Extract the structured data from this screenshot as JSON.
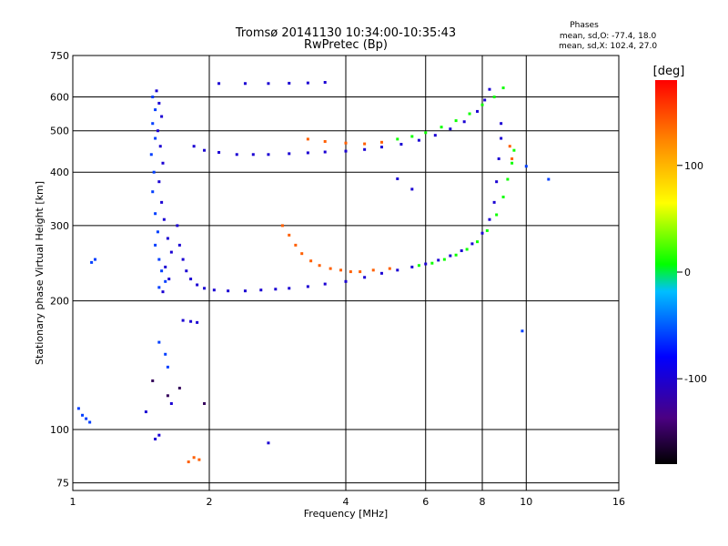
{
  "chart_data": {
    "type": "scatter",
    "title": "Tromsø 20141130 10:34:00-10:35:43",
    "subtitle": "RwPretec (Bp)",
    "xlabel": "Frequency [MHz]",
    "ylabel": "Stationary phase Virtual Height [km]",
    "x_scale": "log",
    "y_scale": "log",
    "xlim": [
      1,
      16
    ],
    "ylim": [
      72,
      750
    ],
    "x_ticks": [
      1,
      2,
      4,
      6,
      8,
      10,
      16
    ],
    "x_tick_labels": [
      "1",
      "2",
      "4",
      "6",
      "8",
      "10",
      "16"
    ],
    "y_ticks": [
      75,
      100,
      200,
      300,
      400,
      500,
      600,
      750
    ],
    "y_tick_labels": [
      "75",
      "100",
      "200",
      "300",
      "400",
      "500",
      "600",
      "750"
    ],
    "grid": true,
    "phase_info": {
      "heading": "Phases",
      "line_o": "mean, sd,O: -77.4, 18.0",
      "line_x": "mean, sd,X: 102.4, 27.0"
    },
    "colorbar": {
      "label": "[deg]",
      "range": [
        -180,
        180
      ],
      "ticks": [
        100,
        0,
        -100
      ],
      "tick_labels": [
        "100",
        "0",
        "-100"
      ]
    },
    "series": [
      {
        "color_deg": -100,
        "points": [
          [
            1.53,
            620
          ],
          [
            1.55,
            580
          ],
          [
            1.57,
            540
          ],
          [
            1.54,
            500
          ],
          [
            1.56,
            460
          ],
          [
            1.58,
            420
          ],
          [
            1.55,
            380
          ],
          [
            1.57,
            340
          ],
          [
            1.59,
            310
          ],
          [
            1.62,
            280
          ],
          [
            1.65,
            260
          ],
          [
            1.6,
            240
          ],
          [
            1.63,
            225
          ],
          [
            1.58,
            210
          ],
          [
            1.7,
            300
          ],
          [
            1.72,
            270
          ],
          [
            1.75,
            250
          ],
          [
            1.78,
            235
          ],
          [
            1.82,
            225
          ],
          [
            1.88,
            218
          ],
          [
            1.95,
            214
          ],
          [
            2.05,
            212
          ],
          [
            2.2,
            211
          ],
          [
            2.4,
            211
          ],
          [
            2.6,
            212
          ],
          [
            2.8,
            213
          ],
          [
            3.0,
            214
          ],
          [
            3.3,
            216
          ],
          [
            3.6,
            219
          ],
          [
            4.0,
            222
          ],
          [
            4.4,
            227
          ],
          [
            4.8,
            232
          ],
          [
            5.2,
            236
          ],
          [
            5.6,
            240
          ],
          [
            6.0,
            244
          ],
          [
            6.4,
            249
          ],
          [
            6.8,
            255
          ],
          [
            7.2,
            262
          ],
          [
            7.6,
            272
          ],
          [
            8.0,
            288
          ],
          [
            8.3,
            310
          ],
          [
            8.5,
            340
          ],
          [
            8.6,
            380
          ],
          [
            8.7,
            430
          ],
          [
            8.8,
            480
          ],
          [
            8.8,
            520
          ],
          [
            1.85,
            460
          ],
          [
            1.95,
            450
          ],
          [
            2.1,
            445
          ],
          [
            2.3,
            440
          ],
          [
            2.5,
            440
          ],
          [
            2.7,
            440
          ],
          [
            3.0,
            442
          ],
          [
            3.3,
            444
          ],
          [
            3.6,
            446
          ],
          [
            4.0,
            448
          ],
          [
            4.4,
            452
          ],
          [
            4.8,
            458
          ],
          [
            5.3,
            465
          ],
          [
            5.8,
            475
          ],
          [
            6.3,
            488
          ],
          [
            6.8,
            505
          ],
          [
            7.3,
            525
          ],
          [
            7.8,
            555
          ],
          [
            8.1,
            590
          ],
          [
            8.3,
            625
          ],
          [
            2.1,
            645
          ],
          [
            2.4,
            645
          ],
          [
            2.7,
            645
          ],
          [
            3.0,
            646
          ],
          [
            3.3,
            647
          ],
          [
            3.6,
            649
          ],
          [
            1.75,
            180
          ],
          [
            1.82,
            179
          ],
          [
            1.88,
            178
          ],
          [
            1.52,
            95
          ],
          [
            1.55,
            97
          ],
          [
            1.45,
            110
          ],
          [
            1.65,
            115
          ],
          [
            5.2,
            386
          ],
          [
            5.6,
            365
          ],
          [
            2.7,
            93
          ]
        ]
      },
      {
        "color_deg": -60,
        "points": [
          [
            1.5,
            600
          ],
          [
            1.52,
            560
          ],
          [
            1.5,
            520
          ],
          [
            1.52,
            480
          ],
          [
            1.49,
            440
          ],
          [
            1.51,
            400
          ],
          [
            1.5,
            360
          ],
          [
            1.52,
            320
          ],
          [
            1.54,
            290
          ],
          [
            1.52,
            270
          ],
          [
            1.55,
            250
          ],
          [
            1.57,
            235
          ],
          [
            1.6,
            222
          ],
          [
            1.55,
            215
          ],
          [
            1.03,
            112
          ],
          [
            1.05,
            108
          ],
          [
            1.07,
            106
          ],
          [
            1.09,
            104
          ],
          [
            1.1,
            246
          ],
          [
            1.12,
            250
          ],
          [
            1.6,
            150
          ],
          [
            1.62,
            140
          ],
          [
            1.55,
            160
          ],
          [
            10.0,
            413
          ],
          [
            9.8,
            170
          ],
          [
            11.2,
            385
          ]
        ]
      },
      {
        "color_deg": 10,
        "points": [
          [
            5.8,
            242
          ],
          [
            6.2,
            245
          ],
          [
            6.6,
            250
          ],
          [
            7.0,
            256
          ],
          [
            7.4,
            264
          ],
          [
            7.8,
            275
          ],
          [
            8.2,
            292
          ],
          [
            8.6,
            318
          ],
          [
            8.9,
            350
          ],
          [
            9.1,
            385
          ],
          [
            9.3,
            420
          ],
          [
            9.4,
            450
          ],
          [
            5.2,
            478
          ],
          [
            5.6,
            485
          ],
          [
            6.0,
            495
          ],
          [
            6.5,
            510
          ],
          [
            7.0,
            528
          ],
          [
            7.5,
            548
          ],
          [
            8.0,
            575
          ],
          [
            8.5,
            600
          ],
          [
            8.9,
            630
          ]
        ]
      },
      {
        "color_deg": 140,
        "points": [
          [
            2.9,
            300
          ],
          [
            3.0,
            285
          ],
          [
            3.1,
            270
          ],
          [
            3.2,
            258
          ],
          [
            3.35,
            248
          ],
          [
            3.5,
            242
          ],
          [
            3.7,
            238
          ],
          [
            3.9,
            236
          ],
          [
            4.1,
            234
          ],
          [
            4.3,
            234
          ],
          [
            4.6,
            236
          ],
          [
            5.0,
            238
          ],
          [
            3.3,
            478
          ],
          [
            3.6,
            472
          ],
          [
            4.0,
            468
          ],
          [
            4.4,
            466
          ],
          [
            4.8,
            470
          ],
          [
            9.2,
            460
          ],
          [
            9.3,
            430
          ],
          [
            1.8,
            84
          ],
          [
            1.85,
            86
          ],
          [
            1.9,
            85
          ]
        ]
      },
      {
        "color_deg": -150,
        "points": [
          [
            1.5,
            130
          ],
          [
            1.62,
            120
          ],
          [
            1.72,
            125
          ],
          [
            1.95,
            115
          ]
        ]
      }
    ]
  }
}
